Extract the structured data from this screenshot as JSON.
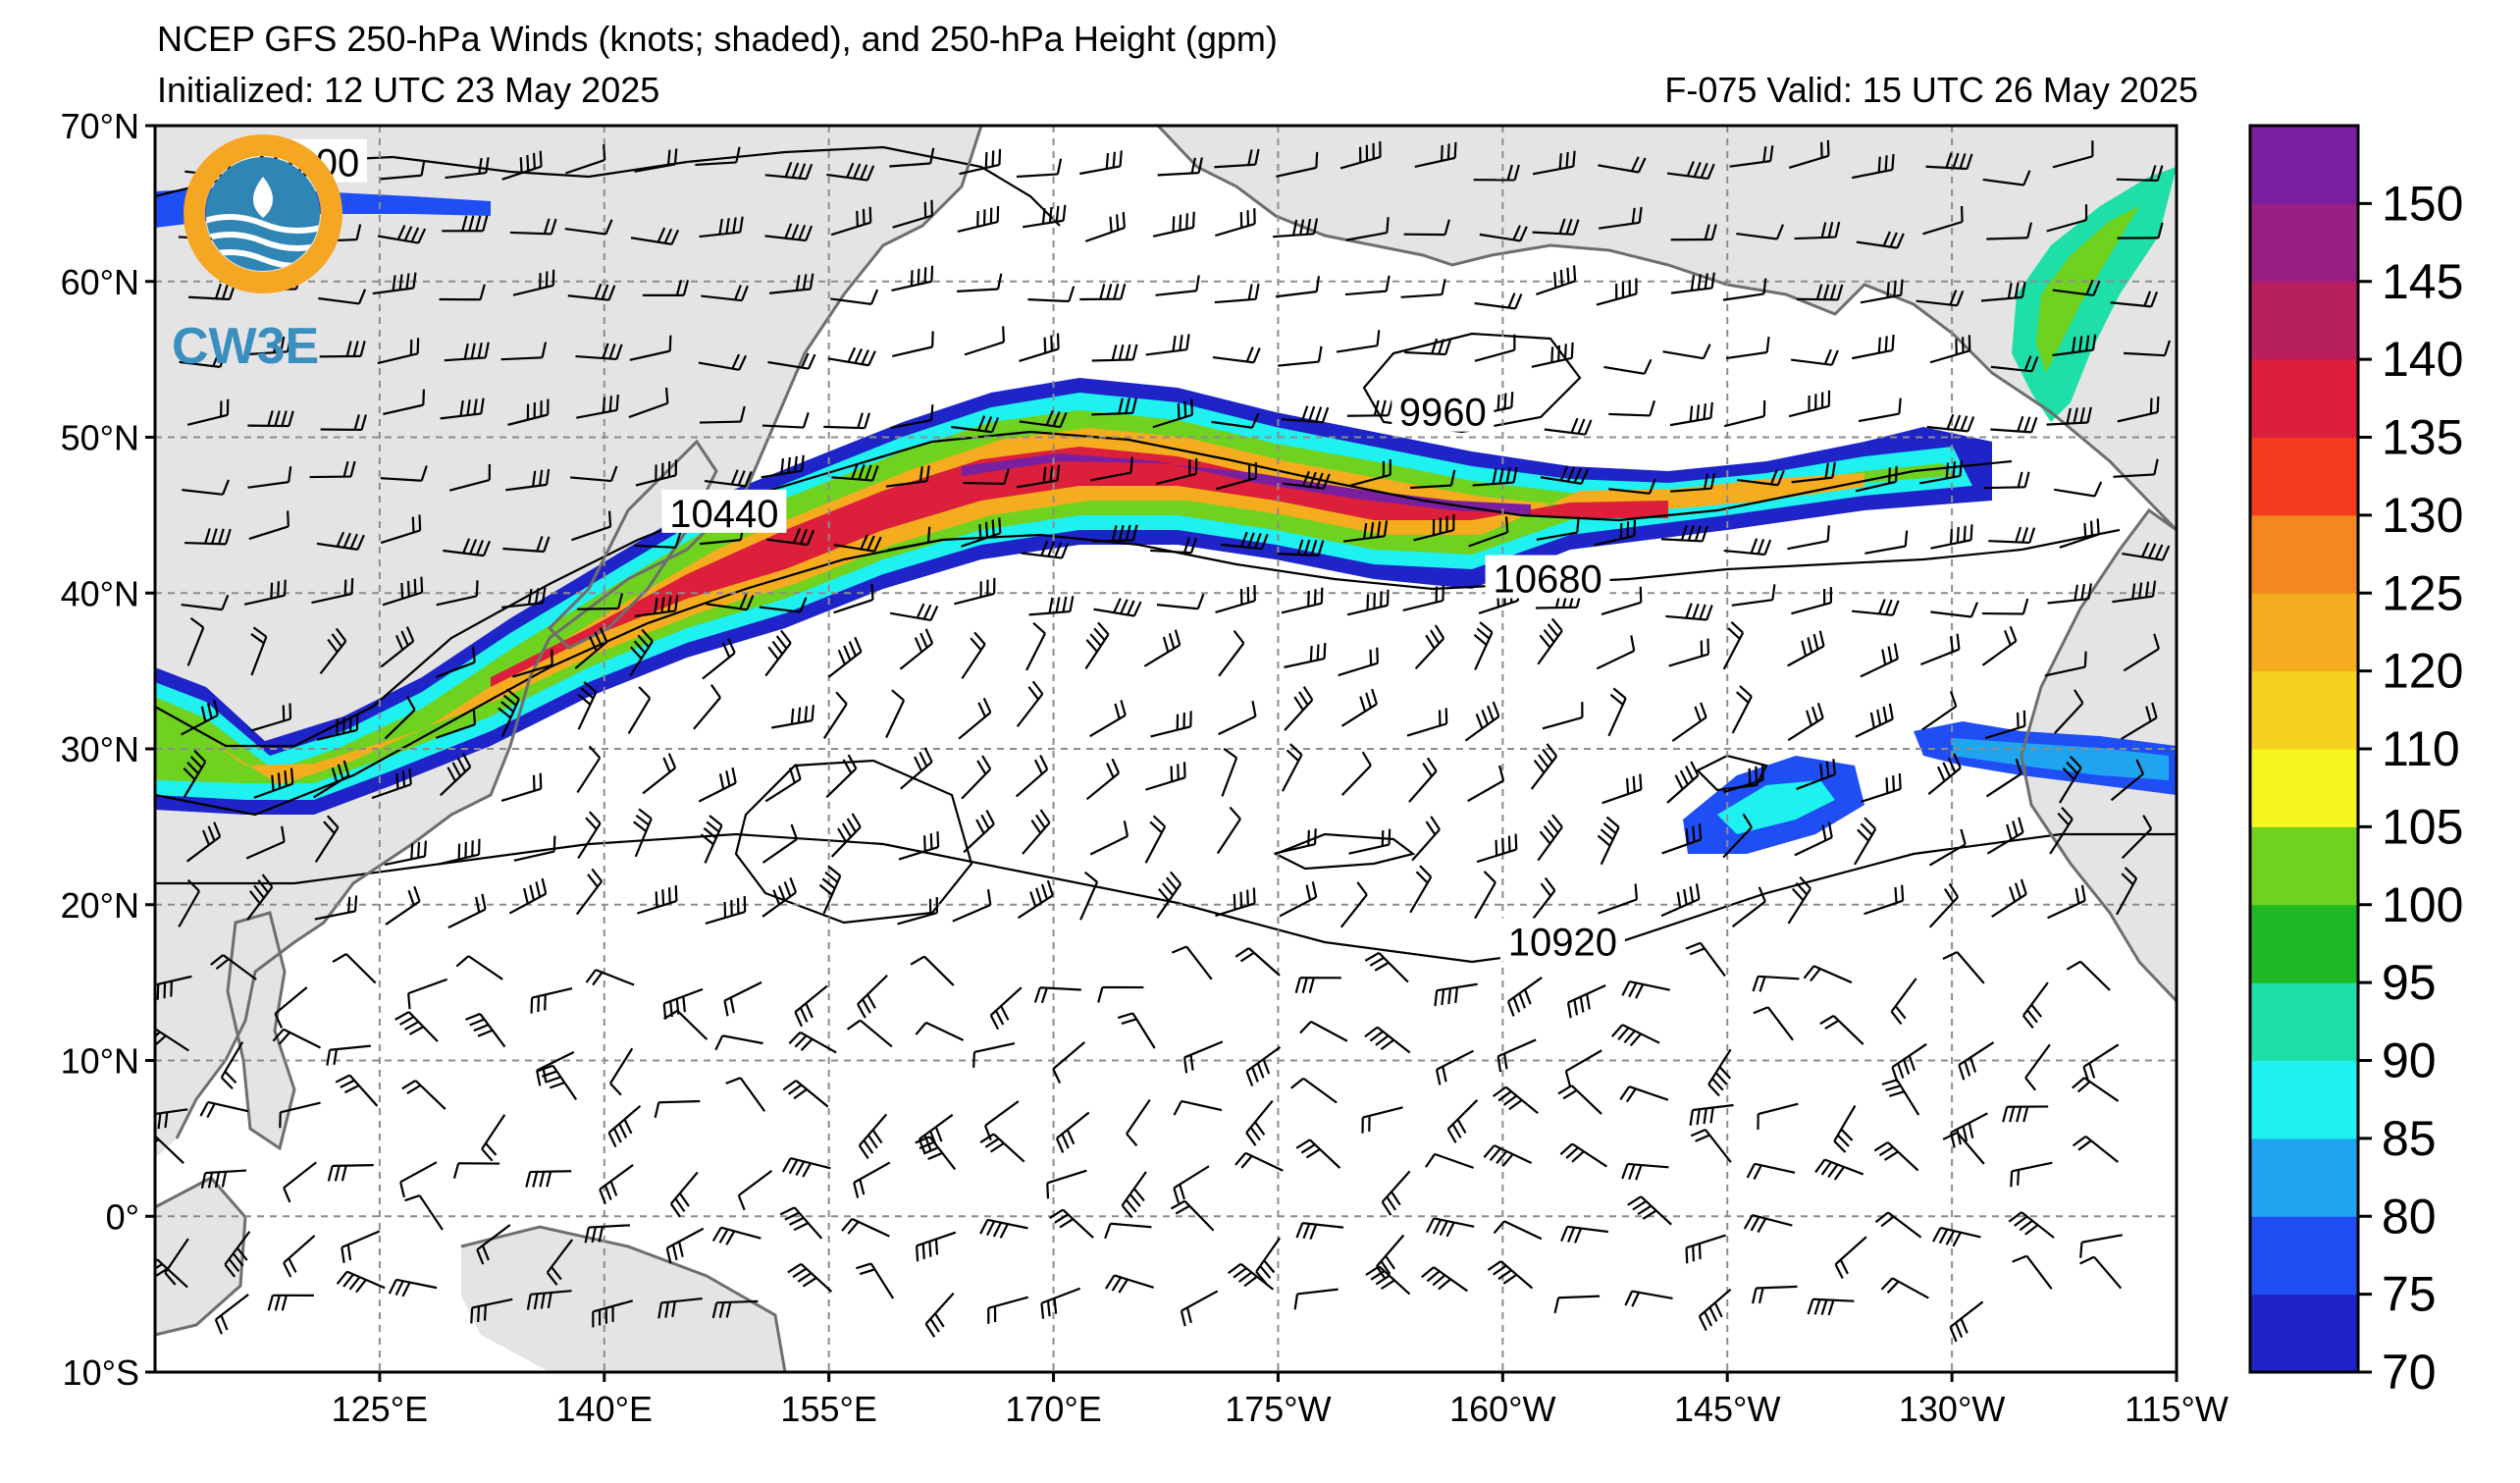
{
  "header": {
    "title": "NCEP GFS 250-hPa Winds (knots; shaded), and 250-hPa Height (gpm)",
    "initialized": "Initialized: 12 UTC 23 May 2025",
    "valid": "F-075  Valid: 15 UTC 26 May 2025"
  },
  "logo": {
    "text": "CW3E",
    "ring_color": "#f5a623",
    "wave_color": "#2f86b5"
  },
  "map": {
    "lon_min": 110,
    "lon_max": 245,
    "lat_min": -10,
    "lat_max": 70,
    "lat_labels": [
      {
        "lat": 70,
        "text": "70°N"
      },
      {
        "lat": 60,
        "text": "60°N"
      },
      {
        "lat": 50,
        "text": "50°N"
      },
      {
        "lat": 40,
        "text": "40°N"
      },
      {
        "lat": 30,
        "text": "30°N"
      },
      {
        "lat": 20,
        "text": "20°N"
      },
      {
        "lat": 10,
        "text": "10°N"
      },
      {
        "lat": 0,
        "text": "0°"
      },
      {
        "lat": -10,
        "text": "10°S"
      }
    ],
    "lon_labels": [
      {
        "lon": 125,
        "text": "125°E"
      },
      {
        "lon": 140,
        "text": "140°E"
      },
      {
        "lon": 155,
        "text": "155°E"
      },
      {
        "lon": 170,
        "text": "170°E"
      },
      {
        "lon": 185,
        "text": "175°W"
      },
      {
        "lon": 200,
        "text": "160°W"
      },
      {
        "lon": 215,
        "text": "145°W"
      },
      {
        "lon": 230,
        "text": "130°W"
      },
      {
        "lon": 245,
        "text": "115°W"
      }
    ],
    "land_color": "#e4e4e4",
    "coast_color": "#6e6e6e",
    "grid_color": "#8c8c8c"
  },
  "contour_labels": [
    {
      "text": "10200",
      "lon": 120,
      "lat": 67.5
    },
    {
      "text": "9960",
      "lon": 196,
      "lat": 51.5
    },
    {
      "text": "10440",
      "lon": 148,
      "lat": 45
    },
    {
      "text": "10680",
      "lon": 203,
      "lat": 40.8
    },
    {
      "text": "10920",
      "lon": 204,
      "lat": 17.5
    }
  ],
  "colorbar": {
    "levels": [
      70,
      75,
      80,
      85,
      90,
      95,
      100,
      105,
      110,
      120,
      125,
      130,
      135,
      140,
      145,
      150,
      155
    ],
    "tick_labels": [
      "70",
      "75",
      "80",
      "85",
      "90",
      "95",
      "100",
      "105",
      "110",
      "120",
      "125",
      "130",
      "135",
      "140",
      "145",
      "150"
    ],
    "colors": [
      "#1f24c9",
      "#1f4ef5",
      "#1fa5f0",
      "#1ff0f0",
      "#1fdfa8",
      "#1fb925",
      "#6fd21f",
      "#f5f51f",
      "#f5d21f",
      "#f5ad1f",
      "#f5871f",
      "#f53a1f",
      "#dc1f3a",
      "#b71f5e",
      "#9a1f82",
      "#7a1fa0"
    ]
  }
}
